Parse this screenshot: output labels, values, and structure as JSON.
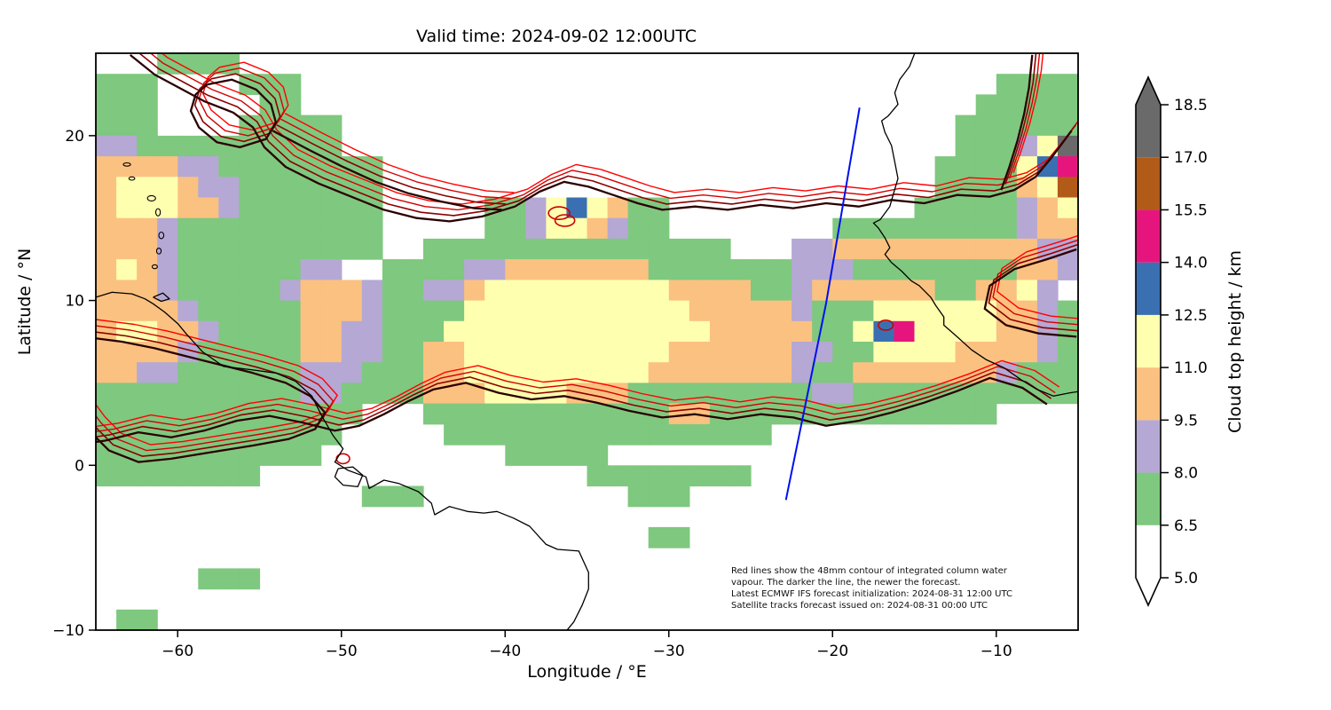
{
  "chart_data": {
    "type": "heatmap",
    "subtype": "filled-contour-map-with-coastlines",
    "title": "Valid time: 2024-09-02 12:00UTC",
    "xlabel": "Longitude / °E",
    "ylabel": "Latitude / °N",
    "xlim": [
      -65,
      -5
    ],
    "ylim": [
      -10,
      25
    ],
    "xticks": [
      -60,
      -50,
      -40,
      -30,
      -20,
      -10
    ],
    "yticks": [
      20,
      10,
      0,
      -10
    ],
    "grid_on": false,
    "colorbar": {
      "label": "Cloud top height / km",
      "ticks": [
        5.0,
        6.5,
        8.0,
        9.5,
        11.0,
        12.5,
        14.0,
        15.5,
        17.0,
        18.5
      ],
      "extend": "both",
      "segments": [
        {
          "range": [
            5.0,
            6.5
          ],
          "color": "#ffffff"
        },
        {
          "range": [
            6.5,
            8.0
          ],
          "color": "#7fc87f"
        },
        {
          "range": [
            8.0,
            9.5
          ],
          "color": "#b5a8d4"
        },
        {
          "range": [
            9.5,
            11.0
          ],
          "color": "#fbc180"
        },
        {
          "range": [
            11.0,
            12.5
          ],
          "color": "#ffffb0"
        },
        {
          "range": [
            12.5,
            14.0
          ],
          "color": "#3a70b2"
        },
        {
          "range": [
            14.0,
            15.5
          ],
          "color": "#e6157e"
        },
        {
          "range": [
            15.5,
            17.0
          ],
          "color": "#b25a17"
        },
        {
          "range": [
            17.0,
            18.5
          ],
          "color": "#6a6a6a"
        }
      ],
      "extend_colors": {
        "over": "#6a6a6a",
        "under": "#ffffff"
      }
    },
    "cloud_field": {
      "units": "km (cloud top height, cell letter = colorbar band)",
      "lon0": -65,
      "lat0": 25,
      "dlon": 1.25,
      "dlat": 1.25,
      "palette": {
        "g": "#7fc87f",
        "p": "#b5a8d4",
        "o": "#fbc180",
        "y": "#ffffb0",
        "b": "#3a70b2",
        "m": "#e6157e",
        "n": "#b25a17",
        "d": "#6a6a6a"
      },
      "band_values": {
        "g": 7.25,
        "p": 8.75,
        "o": 10.25,
        "y": 11.75,
        "b": 13.25,
        "m": 14.75,
        "n": 16.25,
        "d": 17.75
      },
      "rows": [
        "...gggg",
        "ggg....ggg..................................gggg",
        "ggg.....gg.................................ggggg",
        "ggg....ggggg..............................gggggg",
        "ppgggggggggg..............................gggpyd",
        "ooooppgggggggg...........................ggggybm",
        "oyyyoppggggggg...........................ggggoyn",
        "oyyyoopggggggg.....ggpybyogg............gggggpoy",
        "ooopgggggggggg.....ggpyyopgg........gggggggggpoo",
        "ooopgggggggggg..ggggggggggggggg...ppoooooooooopp",
        "oyopggggggpp..ggggppooooooogggggggpppggggggggoop",
        "ooopgggggpooopggppoyyyyyyyyyooooggpooooooggooyp",
        "oooopgggggooopggggyyyyyyyyyyyooooopgggyyyyyyoopg",
        "oyyoopggggooppgggyyyyyyyyyyyyyoooooggybmyyyyoopg",
        "oooopgggggooppggooyyyyyyyyyyooooooppggyyyyoooopg",
        "ooppggggggpppgggooyyyyyyyyyooooooopggooooooopggg",
        "ggggggggggppggggoooyyyyooogggggggggppgggggggggggg",
        "ggggggggggggg...ggggggggggggoogggggggggggggg....",
        "gggggggggggg.....gggggggggggggggg",
        "ggggggggggg.........ggggg",
        "gggggggg................gggggggg",
        ".............ggg..........ggg",
        "",
        "...........................gg",
        "",
        ".....ggg",
        "",
        ".gg"
      ]
    },
    "coastlines": {
      "color": "#000000",
      "paths": [
        [
          [
            -65,
            10.2
          ],
          [
            -64,
            10.5
          ],
          [
            -62.8,
            10.4
          ],
          [
            -62,
            10.1
          ],
          [
            -61.5,
            9.8
          ],
          [
            -60.8,
            9.3
          ],
          [
            -60,
            8.6
          ],
          [
            -59.5,
            8.0
          ],
          [
            -58.5,
            6.9
          ],
          [
            -57.2,
            6.0
          ],
          [
            -55.5,
            5.8
          ],
          [
            -54,
            5.6
          ],
          [
            -52.8,
            5.1
          ],
          [
            -51.8,
            4.2
          ],
          [
            -51.2,
            3.0
          ],
          [
            -50.5,
            1.8
          ],
          [
            -49.9,
            1.0
          ],
          [
            -50.4,
            0.2
          ],
          [
            -49.6,
            -0.3
          ],
          [
            -48.5,
            -0.7
          ],
          [
            -48.3,
            -1.4
          ],
          [
            -47.4,
            -0.9
          ],
          [
            -46.5,
            -1.1
          ],
          [
            -45.3,
            -1.6
          ],
          [
            -44.5,
            -2.3
          ],
          [
            -44.3,
            -3.0
          ],
          [
            -43.4,
            -2.5
          ],
          [
            -42.3,
            -2.8
          ],
          [
            -41.3,
            -2.9
          ],
          [
            -40.5,
            -2.8
          ],
          [
            -39.5,
            -3.2
          ],
          [
            -38.5,
            -3.7
          ],
          [
            -37.5,
            -4.8
          ],
          [
            -36.8,
            -5.1
          ],
          [
            -35.5,
            -5.2
          ],
          [
            -34.9,
            -6.5
          ],
          [
            -34.9,
            -7.5
          ],
          [
            -35.3,
            -8.5
          ],
          [
            -35.8,
            -9.5
          ],
          [
            -36.3,
            -10.1
          ]
        ],
        [
          [
            -50.2,
            -0.2
          ],
          [
            -49.3,
            -0.1
          ],
          [
            -48.7,
            -0.6
          ],
          [
            -49.0,
            -1.3
          ],
          [
            -49.9,
            -1.2
          ],
          [
            -50.4,
            -0.7
          ],
          [
            -50.2,
            -0.2
          ]
        ],
        [
          [
            -61.5,
            10.2
          ],
          [
            -60.9,
            10.45
          ],
          [
            -60.5,
            10.1
          ],
          [
            -61.0,
            9.95
          ],
          [
            -61.5,
            10.2
          ]
        ],
        [
          [
            -14.9,
            25.2
          ],
          [
            -15.3,
            24.2
          ],
          [
            -15.9,
            23.4
          ],
          [
            -16.2,
            22.6
          ],
          [
            -16.0,
            21.9
          ],
          [
            -16.6,
            21.2
          ],
          [
            -17.0,
            20.9
          ],
          [
            -16.8,
            20.2
          ],
          [
            -16.4,
            19.4
          ],
          [
            -16.2,
            18.4
          ],
          [
            -16.0,
            17.4
          ],
          [
            -16.3,
            16.4
          ],
          [
            -16.5,
            15.7
          ],
          [
            -17.1,
            14.9
          ],
          [
            -17.5,
            14.7
          ],
          [
            -17.2,
            14.4
          ],
          [
            -16.8,
            13.8
          ],
          [
            -16.5,
            13.2
          ],
          [
            -16.8,
            12.8
          ],
          [
            -16.4,
            12.3
          ],
          [
            -15.8,
            11.8
          ],
          [
            -15.2,
            11.2
          ],
          [
            -14.7,
            10.9
          ],
          [
            -14.0,
            10.2
          ],
          [
            -13.7,
            9.7
          ],
          [
            -13.2,
            9.0
          ],
          [
            -13.2,
            8.5
          ],
          [
            -12.5,
            7.9
          ],
          [
            -11.5,
            7.0
          ],
          [
            -10.6,
            6.4
          ],
          [
            -9.5,
            5.9
          ],
          [
            -8.5,
            5.2
          ],
          [
            -7.5,
            4.6
          ],
          [
            -6.5,
            4.2
          ],
          [
            -5.5,
            4.4
          ],
          [
            -4.8,
            4.5
          ]
        ]
      ],
      "islands": [
        {
          "lon": -61.4,
          "lat": 12.05,
          "rx": 0.16,
          "ry": 0.12
        },
        {
          "lon": -61.15,
          "lat": 13.0,
          "rx": 0.14,
          "ry": 0.18
        },
        {
          "lon": -61.0,
          "lat": 13.95,
          "rx": 0.15,
          "ry": 0.2
        },
        {
          "lon": -61.2,
          "lat": 15.35,
          "rx": 0.14,
          "ry": 0.22
        },
        {
          "lon": -61.6,
          "lat": 16.2,
          "rx": 0.25,
          "ry": 0.16
        },
        {
          "lon": -62.8,
          "lat": 17.4,
          "rx": 0.18,
          "ry": 0.1
        },
        {
          "lon": -63.1,
          "lat": 18.25,
          "rx": 0.22,
          "ry": 0.1
        }
      ]
    },
    "iwv_contours": {
      "meaning": "48mm integrated column water vapour contour, darker = newer forecast",
      "generations": [
        {
          "color": "#ff0000",
          "width": 1.4,
          "dlat": 0.55,
          "dlon": 0.35
        },
        {
          "color": "#d40000",
          "width": 1.4,
          "dlat": 0.2,
          "dlon": 0.1
        },
        {
          "color": "#8b0000",
          "width": 1.6,
          "dlat": -0.15,
          "dlon": -0.15
        },
        {
          "color": "#2b0000",
          "width": 2.3,
          "dlat": -0.5,
          "dlon": -0.4
        }
      ],
      "base_paths": [
        [
          [
            -5,
            20.8
          ],
          [
            -6.2,
            19.2
          ],
          [
            -7.2,
            18.0
          ],
          [
            -8.5,
            17.2
          ],
          [
            -10,
            16.8
          ],
          [
            -12,
            16.9
          ],
          [
            -14,
            16.4
          ],
          [
            -16,
            16.6
          ],
          [
            -18,
            16.2
          ],
          [
            -20,
            16.4
          ],
          [
            -22,
            16.1
          ],
          [
            -24,
            16.3
          ],
          [
            -26,
            16.0
          ],
          [
            -28,
            16.2
          ],
          [
            -30,
            16.0
          ],
          [
            -31.5,
            16.4
          ],
          [
            -33,
            16.9
          ],
          [
            -34.5,
            17.4
          ],
          [
            -36,
            17.7
          ],
          [
            -37.5,
            17.1
          ],
          [
            -39,
            16.2
          ],
          [
            -41,
            15.6
          ],
          [
            -43,
            15.3
          ],
          [
            -45,
            15.5
          ],
          [
            -47,
            16.0
          ],
          [
            -49,
            16.8
          ],
          [
            -51,
            17.6
          ],
          [
            -53,
            18.6
          ],
          [
            -54.3,
            19.8
          ],
          [
            -55,
            21.0
          ],
          [
            -56.2,
            21.9
          ],
          [
            -58,
            22.6
          ],
          [
            -59.5,
            23.4
          ],
          [
            -61,
            24.2
          ],
          [
            -62.5,
            25.4
          ]
        ],
        [
          [
            -6.5,
            4.2
          ],
          [
            -8,
            5.2
          ],
          [
            -10,
            5.8
          ],
          [
            -12,
            5.0
          ],
          [
            -14,
            4.3
          ],
          [
            -16,
            3.7
          ],
          [
            -18,
            3.2
          ],
          [
            -20,
            2.9
          ],
          [
            -22,
            3.4
          ],
          [
            -24,
            3.6
          ],
          [
            -26,
            3.3
          ],
          [
            -28,
            3.6
          ],
          [
            -30,
            3.4
          ],
          [
            -32,
            3.8
          ],
          [
            -34,
            4.3
          ],
          [
            -36,
            4.7
          ],
          [
            -38,
            4.5
          ],
          [
            -40,
            4.9
          ],
          [
            -42,
            5.5
          ],
          [
            -44,
            5.1
          ],
          [
            -45.5,
            4.4
          ],
          [
            -47,
            3.6
          ],
          [
            -48.5,
            2.9
          ],
          [
            -50,
            2.6
          ],
          [
            -52,
            3.1
          ],
          [
            -54,
            3.5
          ],
          [
            -56,
            3.2
          ],
          [
            -58,
            2.6
          ],
          [
            -60,
            2.2
          ],
          [
            -62,
            2.5
          ],
          [
            -64,
            2.0
          ],
          [
            -65.4,
            1.8
          ]
        ],
        [
          [
            -65.4,
            8.3
          ],
          [
            -63,
            8.0
          ],
          [
            -61,
            7.6
          ],
          [
            -59,
            7.1
          ],
          [
            -57,
            6.6
          ],
          [
            -55,
            6.1
          ],
          [
            -53,
            5.5
          ],
          [
            -51.5,
            4.7
          ],
          [
            -50.6,
            3.7
          ],
          [
            -51.2,
            2.7
          ],
          [
            -52.8,
            2.1
          ],
          [
            -55,
            1.7
          ],
          [
            -57.5,
            1.3
          ],
          [
            -60,
            0.9
          ],
          [
            -62,
            0.7
          ],
          [
            -63.8,
            1.4
          ],
          [
            -64.8,
            2.4
          ],
          [
            -65.4,
            3.2
          ]
        ],
        [
          [
            -57.8,
            23.6
          ],
          [
            -56.3,
            23.9
          ],
          [
            -54.8,
            23.3
          ],
          [
            -53.9,
            22.4
          ],
          [
            -53.6,
            21.3
          ],
          [
            -54.2,
            20.3
          ],
          [
            -55.8,
            19.8
          ],
          [
            -57.2,
            20.1
          ],
          [
            -58.3,
            21.0
          ],
          [
            -58.8,
            22.0
          ],
          [
            -58.5,
            23.0
          ],
          [
            -57.8,
            23.6
          ]
        ],
        [
          [
            -53.8,
            20.8
          ],
          [
            -51.5,
            19.6
          ],
          [
            -49.5,
            18.6
          ],
          [
            -47.5,
            17.7
          ],
          [
            -45.5,
            17.0
          ],
          [
            -43.5,
            16.5
          ],
          [
            -41.5,
            16.1
          ],
          [
            -39.8,
            16.0
          ]
        ],
        [
          [
            -9.3,
            17.2
          ],
          [
            -8.8,
            18.6
          ],
          [
            -8.3,
            20.2
          ],
          [
            -7.9,
            21.8
          ],
          [
            -7.6,
            23.4
          ],
          [
            -7.4,
            25.4
          ]
        ],
        [
          [
            -4.7,
            13.6
          ],
          [
            -6.5,
            13.0
          ],
          [
            -8.5,
            12.4
          ],
          [
            -10,
            11.4
          ],
          [
            -10.3,
            10.0
          ],
          [
            -9,
            9.0
          ],
          [
            -7,
            8.5
          ],
          [
            -4.7,
            8.3
          ]
        ]
      ],
      "cell_rings": [
        {
          "lon": -36.7,
          "lat": 15.3,
          "rx": 0.65,
          "ry": 0.38
        },
        {
          "lon": -36.35,
          "lat": 14.85,
          "rx": 0.6,
          "ry": 0.35
        },
        {
          "lon": -16.75,
          "lat": 8.5,
          "rx": 0.45,
          "ry": 0.3
        },
        {
          "lon": -49.9,
          "lat": 0.4,
          "rx": 0.4,
          "ry": 0.3
        }
      ],
      "ring_color": "#cc0000"
    },
    "satellite_track": {
      "color": "#0010ee",
      "width": 2,
      "points": [
        [
          -18.35,
          21.7
        ],
        [
          -20.4,
          9.8
        ],
        [
          -22.85,
          -2.1
        ]
      ]
    },
    "annotation": {
      "lines": [
        "Red lines show the 48mm contour of integrated column water",
        "vapour. The darker the line, the newer the forecast.",
        "Latest ECMWF IFS forecast initialization: 2024-08-31 12:00 UTC",
        "Satellite tracks forecast issued on: 2024-08-31 00:00 UTC"
      ]
    }
  }
}
